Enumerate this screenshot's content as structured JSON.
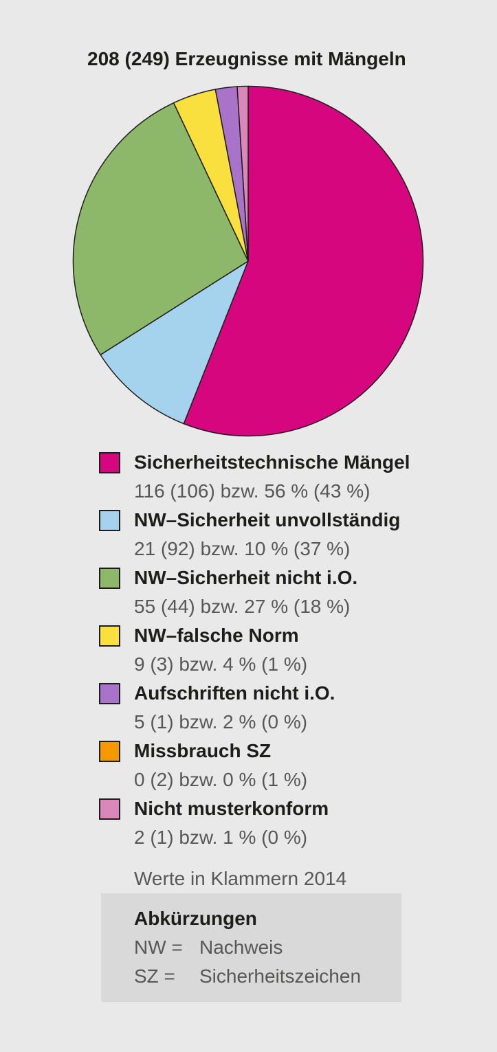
{
  "background_color": "#e9e9e9",
  "title": "208 (249) Erzeugnisse mit Mängeln",
  "chart_data": {
    "type": "pie",
    "title": "208 (249) Erzeugnisse mit Mängeln",
    "direction": "clockwise",
    "start_angle": "12-o'clock",
    "note": "Werte in Klammern 2014",
    "total": 208,
    "total_2014": 249,
    "slices": [
      {
        "label": "Sicherheitstechnische Mängel",
        "value": 116,
        "value_2014": 106,
        "pct": 56,
        "pct_2014": 43,
        "value_text": "116 (106) bzw. 56 % (43 %)",
        "color": "#d6077e"
      },
      {
        "label": "NW–Sicherheit unvollständig",
        "value": 21,
        "value_2014": 92,
        "pct": 10,
        "pct_2014": 37,
        "value_text": "21 (92) bzw. 10 % (37 %)",
        "color": "#a5d2ed"
      },
      {
        "label": "NW–Sicherheit nicht i.O.",
        "value": 55,
        "value_2014": 44,
        "pct": 27,
        "pct_2014": 18,
        "value_text": "55 (44) bzw. 27 % (18 %)",
        "color": "#8db869"
      },
      {
        "label": "NW–falsche Norm",
        "value": 9,
        "value_2014": 3,
        "pct": 4,
        "pct_2014": 1,
        "value_text": "9 (3) bzw. 4 % (1 %)",
        "color": "#f9e03e"
      },
      {
        "label": "Aufschriften nicht i.O.",
        "value": 5,
        "value_2014": 1,
        "pct": 2,
        "pct_2014": 0,
        "value_text": "5 (1) bzw. 2 % (0 %)",
        "color": "#a873c9"
      },
      {
        "label": "Missbrauch SZ",
        "value": 0,
        "value_2014": 2,
        "pct": 0,
        "pct_2014": 1,
        "value_text": "0 (2) bzw. 0 % (1 %)",
        "color": "#f59800"
      },
      {
        "label": "Nicht musterkonform",
        "value": 2,
        "value_2014": 1,
        "pct": 1,
        "pct_2014": 0,
        "value_text": "2 (1) bzw. 1 % (0 %)",
        "color": "#d988b9"
      }
    ]
  },
  "abbreviations": {
    "title": "Abkürzungen",
    "items": [
      {
        "abbr": "NW =",
        "meaning": "Nachweis"
      },
      {
        "abbr": "SZ =",
        "meaning": "Sicherheitszeichen"
      }
    ]
  }
}
